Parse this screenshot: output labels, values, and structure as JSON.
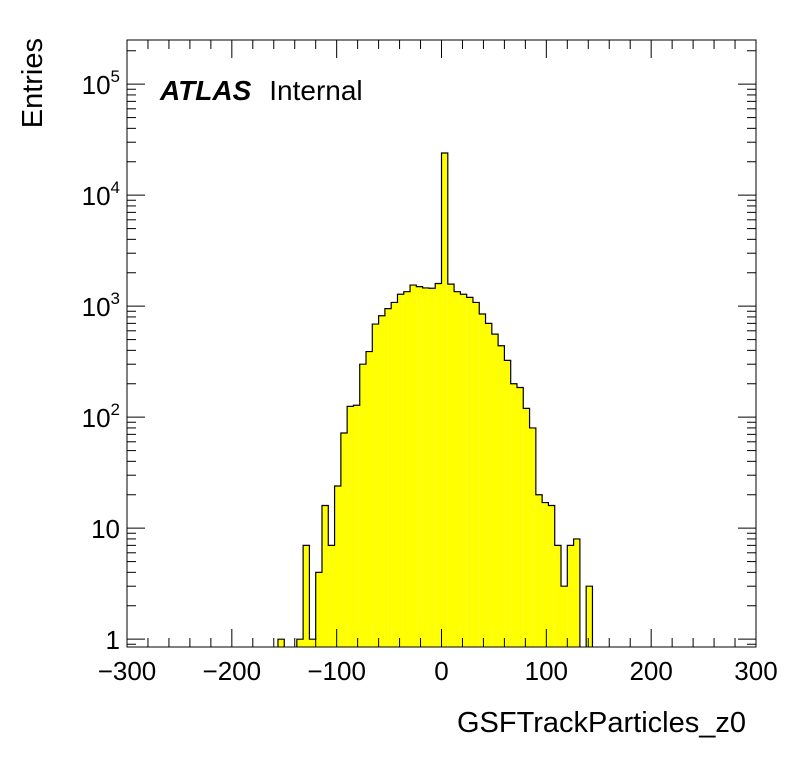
{
  "chart_data": {
    "type": "bar",
    "ylog": true,
    "fill_color": "#ffff00",
    "line_color": "#000000",
    "xlabel": "GSFTrackParticles_z0",
    "ylabel": "Entries",
    "label_bold": "ATLAS",
    "label_normal": "Internal",
    "xlim": [
      -300,
      300
    ],
    "ylim": [
      0.85,
      250000
    ],
    "x_ticks": [
      {
        "value": -300,
        "label": "−300"
      },
      {
        "value": -200,
        "label": "−200"
      },
      {
        "value": -100,
        "label": "−100"
      },
      {
        "value": 0,
        "label": "0"
      },
      {
        "value": 100,
        "label": "100"
      },
      {
        "value": 200,
        "label": "200"
      },
      {
        "value": 300,
        "label": "300"
      }
    ],
    "y_ticks": [
      {
        "value": 1,
        "base": "1",
        "exp": ""
      },
      {
        "value": 10,
        "base": "10",
        "exp": ""
      },
      {
        "value": 100,
        "base": "10",
        "exp": "2"
      },
      {
        "value": 1000,
        "base": "10",
        "exp": "3"
      },
      {
        "value": 10000,
        "base": "10",
        "exp": "4"
      },
      {
        "value": 100000,
        "base": "10",
        "exp": "5"
      }
    ],
    "bins": [
      {
        "x0": -156,
        "x1": -150,
        "y": 1
      },
      {
        "x0": -138,
        "x1": -132,
        "y": 1
      },
      {
        "x0": -132,
        "x1": -126,
        "y": 7
      },
      {
        "x0": -126,
        "x1": -120,
        "y": 1
      },
      {
        "x0": -120,
        "x1": -114,
        "y": 4
      },
      {
        "x0": -114,
        "x1": -108,
        "y": 16
      },
      {
        "x0": -108,
        "x1": -102,
        "y": 7
      },
      {
        "x0": -102,
        "x1": -96,
        "y": 24
      },
      {
        "x0": -96,
        "x1": -90,
        "y": 72
      },
      {
        "x0": -90,
        "x1": -84,
        "y": 125
      },
      {
        "x0": -84,
        "x1": -78,
        "y": 128
      },
      {
        "x0": -78,
        "x1": -72,
        "y": 300
      },
      {
        "x0": -72,
        "x1": -66,
        "y": 390
      },
      {
        "x0": -66,
        "x1": -60,
        "y": 690
      },
      {
        "x0": -60,
        "x1": -54,
        "y": 820
      },
      {
        "x0": -54,
        "x1": -48,
        "y": 950
      },
      {
        "x0": -48,
        "x1": -42,
        "y": 1080
      },
      {
        "x0": -42,
        "x1": -36,
        "y": 1280
      },
      {
        "x0": -36,
        "x1": -30,
        "y": 1350
      },
      {
        "x0": -30,
        "x1": -24,
        "y": 1550
      },
      {
        "x0": -24,
        "x1": -18,
        "y": 1500
      },
      {
        "x0": -18,
        "x1": -12,
        "y": 1460
      },
      {
        "x0": -12,
        "x1": -6,
        "y": 1450
      },
      {
        "x0": -6,
        "x1": 0,
        "y": 1600
      },
      {
        "x0": 0,
        "x1": 6,
        "y": 24000
      },
      {
        "x0": 6,
        "x1": 12,
        "y": 1580
      },
      {
        "x0": 12,
        "x1": 18,
        "y": 1350
      },
      {
        "x0": 18,
        "x1": 24,
        "y": 1280
      },
      {
        "x0": 24,
        "x1": 30,
        "y": 1200
      },
      {
        "x0": 30,
        "x1": 36,
        "y": 1080
      },
      {
        "x0": 36,
        "x1": 42,
        "y": 850
      },
      {
        "x0": 42,
        "x1": 48,
        "y": 700
      },
      {
        "x0": 48,
        "x1": 54,
        "y": 560
      },
      {
        "x0": 54,
        "x1": 60,
        "y": 440
      },
      {
        "x0": 60,
        "x1": 66,
        "y": 325
      },
      {
        "x0": 66,
        "x1": 72,
        "y": 200
      },
      {
        "x0": 72,
        "x1": 78,
        "y": 185
      },
      {
        "x0": 78,
        "x1": 84,
        "y": 120
      },
      {
        "x0": 84,
        "x1": 90,
        "y": 80
      },
      {
        "x0": 90,
        "x1": 96,
        "y": 20
      },
      {
        "x0": 96,
        "x1": 102,
        "y": 17
      },
      {
        "x0": 102,
        "x1": 108,
        "y": 16
      },
      {
        "x0": 108,
        "x1": 114,
        "y": 7
      },
      {
        "x0": 114,
        "x1": 120,
        "y": 3
      },
      {
        "x0": 120,
        "x1": 126,
        "y": 7
      },
      {
        "x0": 126,
        "x1": 132,
        "y": 8
      },
      {
        "x0": 138,
        "x1": 144,
        "y": 3
      }
    ]
  }
}
